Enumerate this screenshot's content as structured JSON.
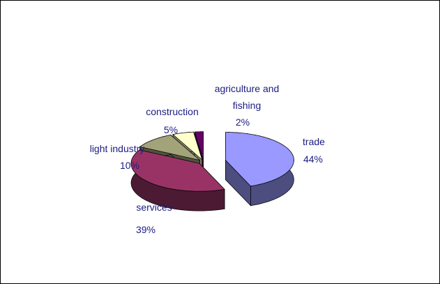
{
  "chart_data": {
    "type": "pie3d",
    "categories": [
      "trade",
      "services",
      "light industry",
      "construction",
      "agriculture and fishing"
    ],
    "values": [
      44,
      39,
      10,
      5,
      2
    ],
    "value_labels": [
      "44%",
      "39%",
      "10%",
      "5%",
      "2%"
    ],
    "colors": [
      "#9999ff",
      "#993366",
      "#a3a37a",
      "#ffffcc",
      "#660066"
    ],
    "side_colors": [
      "#4d4d80",
      "#4d1a33",
      "#52523d",
      "#808066",
      "#330033"
    ]
  }
}
